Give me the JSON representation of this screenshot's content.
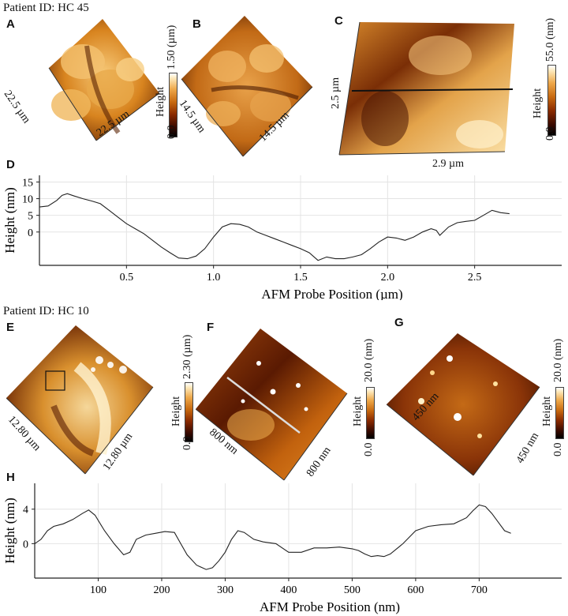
{
  "patients": {
    "top": "Patient ID: HC 45",
    "bottom": "Patient ID: HC 10"
  },
  "panels": {
    "A": {
      "label": "A",
      "dim1": "22.5 µm",
      "dim2": "22.5 µm",
      "cbar_max": "1.50 (µm)",
      "cbar_min": "0.0",
      "cbar_title": "Height"
    },
    "B": {
      "label": "B",
      "dim1": "14.5 µm",
      "dim2": "14.5 µm"
    },
    "C": {
      "label": "C",
      "dim1": "2.5 µm",
      "dim2": "2.9 µm",
      "cbar_max": "55.0 (nm)",
      "cbar_min": "0.0",
      "cbar_title": "Height"
    },
    "E": {
      "label": "E",
      "dim1": "12.80 µm",
      "dim2": "12.80 µm",
      "cbar_max": "2.30 (µm)",
      "cbar_min": "0.0",
      "cbar_title": "Height"
    },
    "F": {
      "label": "F",
      "dim1": "800 nm",
      "dim2": "800 nm",
      "cbar_max": "20.0 (nm)",
      "cbar_min": "0.0",
      "cbar_title": "Height"
    },
    "G": {
      "label": "G",
      "dim1": "450 nm",
      "dim2": "450 nm",
      "cbar_max": "20.0 (nm)",
      "cbar_min": "0.0",
      "cbar_title": "Height"
    }
  },
  "chart_data": [
    {
      "panel": "D",
      "type": "line",
      "xlabel": "AFM Probe Position (µm)",
      "ylabel": "Height (nm)",
      "xlim": [
        0,
        3.0
      ],
      "ylim": [
        -10,
        17
      ],
      "xticks": [
        "0.5",
        "1.0",
        "1.5",
        "2.0",
        "2.5"
      ],
      "yticks": [
        "0",
        "5",
        "10",
        "15"
      ],
      "grid": true,
      "x": [
        0.0,
        0.05,
        0.1,
        0.13,
        0.16,
        0.2,
        0.25,
        0.3,
        0.35,
        0.4,
        0.45,
        0.5,
        0.55,
        0.6,
        0.65,
        0.7,
        0.75,
        0.8,
        0.85,
        0.9,
        0.95,
        1.0,
        1.05,
        1.1,
        1.15,
        1.2,
        1.25,
        1.3,
        1.35,
        1.4,
        1.45,
        1.5,
        1.55,
        1.6,
        1.65,
        1.7,
        1.75,
        1.8,
        1.85,
        1.9,
        1.95,
        2.0,
        2.05,
        2.1,
        2.15,
        2.2,
        2.25,
        2.28,
        2.3,
        2.35,
        2.4,
        2.45,
        2.5,
        2.55,
        2.6,
        2.65,
        2.7
      ],
      "y": [
        7.5,
        7.8,
        9.5,
        11.0,
        11.5,
        10.8,
        10.0,
        9.3,
        8.5,
        6.5,
        4.5,
        2.5,
        1.0,
        -0.5,
        -2.5,
        -4.5,
        -6.2,
        -7.8,
        -8.0,
        -7.2,
        -5.0,
        -1.5,
        1.5,
        2.5,
        2.3,
        1.5,
        0.0,
        -1.0,
        -2.0,
        -3.0,
        -4.0,
        -5.0,
        -6.2,
        -8.5,
        -7.5,
        -8.0,
        -8.0,
        -7.5,
        -6.8,
        -5.0,
        -3.0,
        -1.5,
        -1.8,
        -2.5,
        -1.5,
        0.0,
        1.0,
        0.5,
        -1.0,
        1.5,
        2.8,
        3.2,
        3.5,
        5.0,
        6.5,
        5.8,
        5.5
      ]
    },
    {
      "panel": "H",
      "type": "line",
      "xlabel": "AFM Probe Position (nm)",
      "ylabel": "Height (nm)",
      "xlim": [
        0,
        830
      ],
      "ylim": [
        -4,
        7
      ],
      "xticks": [
        "100",
        "200",
        "300",
        "400",
        "500",
        "600",
        "700"
      ],
      "yticks": [
        "0",
        "4"
      ],
      "grid": true,
      "x": [
        0,
        10,
        20,
        30,
        45,
        60,
        75,
        85,
        95,
        110,
        125,
        140,
        150,
        160,
        175,
        190,
        205,
        220,
        230,
        240,
        255,
        270,
        280,
        290,
        300,
        310,
        320,
        330,
        345,
        360,
        380,
        400,
        420,
        440,
        460,
        480,
        500,
        510,
        520,
        530,
        540,
        550,
        560,
        580,
        600,
        620,
        640,
        660,
        680,
        690,
        700,
        710,
        720,
        730,
        740,
        750
      ],
      "y": [
        0.0,
        0.5,
        1.5,
        2.0,
        2.3,
        2.8,
        3.5,
        3.9,
        3.3,
        1.5,
        0.0,
        -1.3,
        -1.0,
        0.5,
        1.0,
        1.2,
        1.4,
        1.3,
        0.0,
        -1.3,
        -2.5,
        -3.0,
        -2.8,
        -2.0,
        -1.0,
        0.5,
        1.5,
        1.3,
        0.5,
        0.2,
        0.0,
        -1.0,
        -1.0,
        -0.5,
        -0.5,
        -0.4,
        -0.6,
        -0.8,
        -1.2,
        -1.5,
        -1.4,
        -1.5,
        -1.2,
        0.0,
        1.5,
        2.0,
        2.2,
        2.3,
        3.0,
        3.8,
        4.5,
        4.3,
        3.5,
        2.5,
        1.5,
        1.2
      ]
    }
  ]
}
